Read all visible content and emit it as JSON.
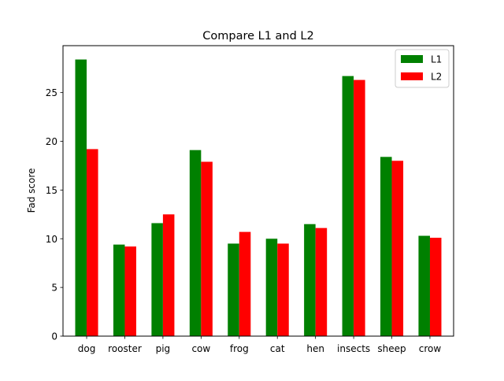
{
  "chart_data": {
    "type": "bar",
    "title": "Compare L1 and L2",
    "xlabel": "",
    "ylabel": "Fad score",
    "categories": [
      "dog",
      "rooster",
      "pig",
      "cow",
      "frog",
      "cat",
      "hen",
      "insects",
      "sheep",
      "crow"
    ],
    "series": [
      {
        "name": "L1",
        "color": "#008000",
        "values": [
          28.4,
          9.4,
          11.6,
          19.1,
          9.5,
          10.0,
          11.5,
          26.7,
          18.4,
          10.3
        ]
      },
      {
        "name": "L2",
        "color": "#ff0000",
        "values": [
          19.2,
          9.2,
          12.5,
          17.9,
          10.7,
          9.5,
          11.1,
          26.3,
          18.0,
          10.1
        ]
      }
    ],
    "yticks": [
      0,
      5,
      10,
      15,
      20,
      25
    ],
    "ylim": [
      0,
      29.82
    ],
    "grid": false,
    "legend": "top-right"
  }
}
